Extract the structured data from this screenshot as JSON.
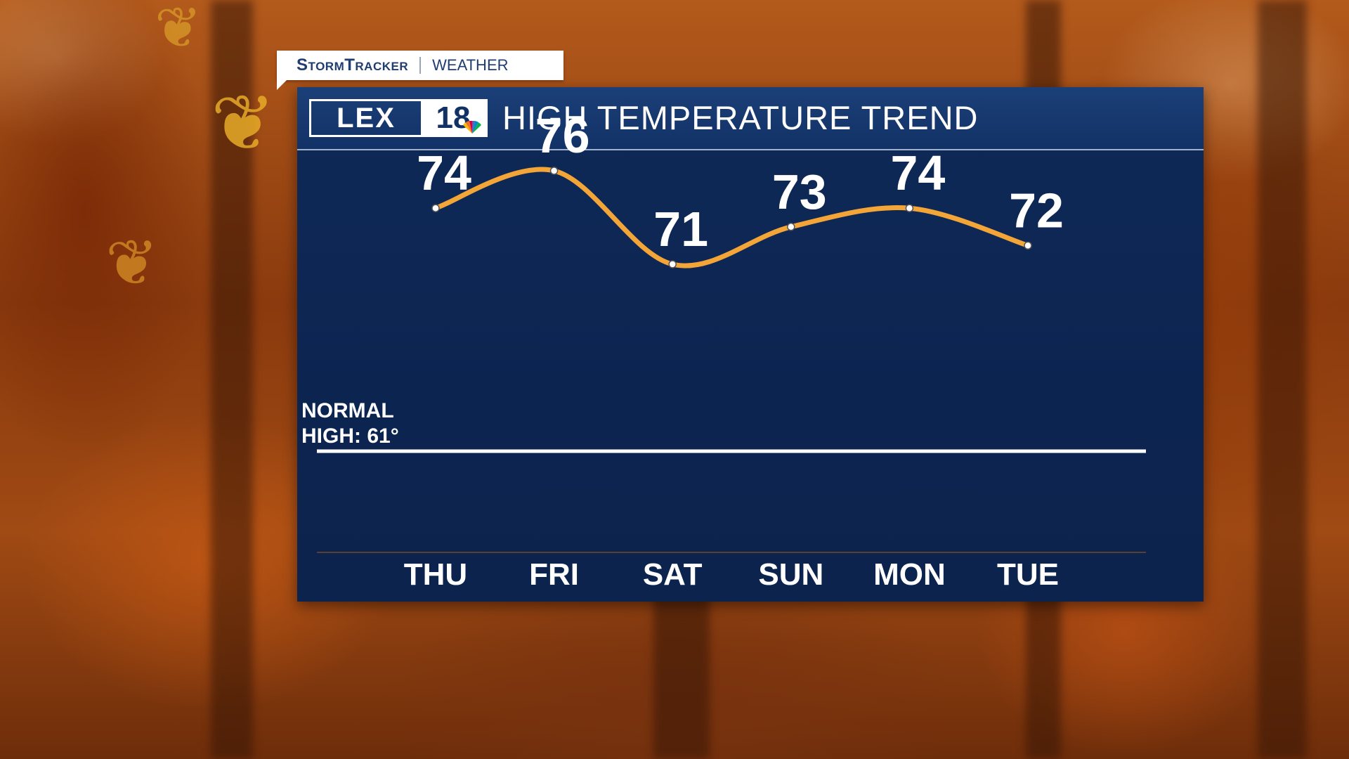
{
  "brand": {
    "name": "StormTracker",
    "section": "WEATHER"
  },
  "station": {
    "logo_text": "LEX",
    "logo_number": "18"
  },
  "colors": {
    "panel": "#0c2450",
    "line": "#f4a538",
    "text": "#ffffff",
    "normal_line": "#ffffff"
  },
  "chart_data": {
    "type": "line",
    "title": "HIGH TEMPERATURE TREND",
    "categories": [
      "THU",
      "FRI",
      "SAT",
      "SUN",
      "MON",
      "TUE"
    ],
    "series": [
      {
        "values": [
          74,
          76,
          71,
          73,
          74,
          72
        ]
      }
    ],
    "data_labels": [
      "74",
      "76",
      "71",
      "73",
      "74",
      "72"
    ],
    "ylim": [
      61,
      80
    ],
    "reference_line": {
      "value": 61,
      "label_line1": "NORMAL",
      "label_line2": "HIGH: 61°"
    },
    "grid": false,
    "legend": "none",
    "xlabel": "",
    "ylabel": ""
  }
}
